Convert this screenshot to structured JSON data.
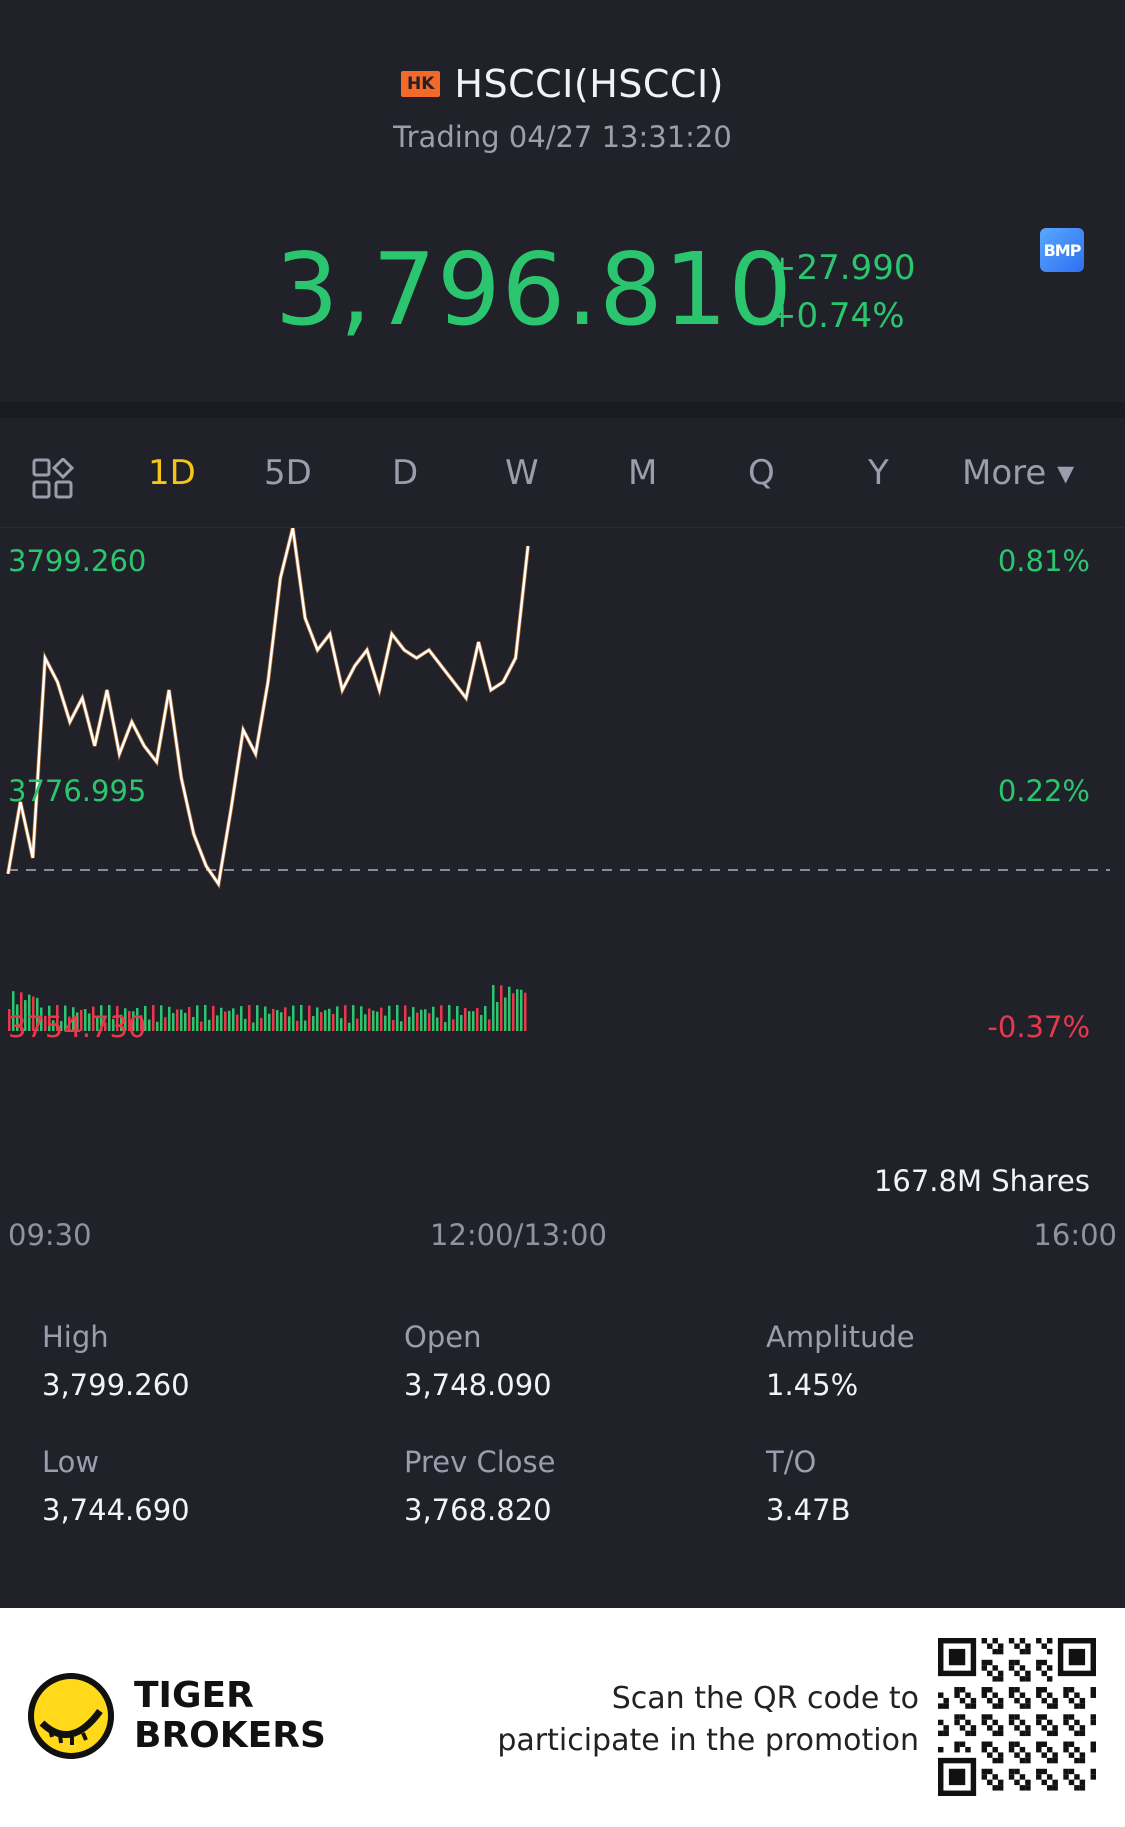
{
  "header": {
    "exchange_badge": "HK",
    "title": "HSCCI(HSCCI)",
    "subtitle": "Trading 04/27 13:31:20",
    "price": "3,796.810",
    "change_abs": "+27.990",
    "change_pct": "+0.74%",
    "bmp_badge": "BMP"
  },
  "tabs": {
    "items": [
      "1D",
      "5D",
      "D",
      "W",
      "M",
      "Q",
      "Y",
      "More ▾"
    ],
    "active": "1D"
  },
  "chart": {
    "y_high_label": "3799.260",
    "y_mid_label": "3776.995",
    "y_low_label": "3754.730",
    "pct_high_label": "0.81%",
    "pct_mid_label": "0.22%",
    "pct_low_label": "-0.37%",
    "volume_label": "167.8M Shares",
    "x_start": "09:30",
    "x_mid": "12:00/13:00",
    "x_end": "16:00"
  },
  "chart_data": {
    "type": "line",
    "prev_close": 3768.82,
    "ylim": [
      3754.73,
      3799.26
    ],
    "x_ticks": [
      "09:30",
      "12:00/13:00",
      "16:00"
    ],
    "values": [
      3756,
      3765,
      3758,
      3783,
      3780,
      3775,
      3778,
      3772,
      3779,
      3771,
      3775,
      3772,
      3770,
      3779,
      3768,
      3761,
      3757,
      3754.73,
      3764,
      3774,
      3771,
      3780,
      3793,
      3799.26,
      3788,
      3784,
      3786,
      3779,
      3782,
      3784,
      3779,
      3786,
      3784,
      3783,
      3784,
      3782,
      3780,
      3778,
      3785,
      3779,
      3780,
      3783,
      3797
    ],
    "volume_colors": [
      "#2cc56f",
      "#e8384b"
    ]
  },
  "stats": [
    {
      "label": "High",
      "value": "3,799.260"
    },
    {
      "label": "Open",
      "value": "3,748.090"
    },
    {
      "label": "Amplitude",
      "value": "1.45%"
    },
    {
      "label": "Low",
      "value": "3,744.690"
    },
    {
      "label": "Prev Close",
      "value": "3,768.820"
    },
    {
      "label": "T/O",
      "value": "3.47B"
    }
  ],
  "footer": {
    "brand_line1": "TIGER",
    "brand_line2": "BROKERS",
    "promo_line1": "Scan the QR code to",
    "promo_line2": "participate in the promotion"
  },
  "colors": {
    "up": "#2cc56f",
    "down": "#e8384b",
    "accent": "#f5c518",
    "background": "#202129"
  }
}
